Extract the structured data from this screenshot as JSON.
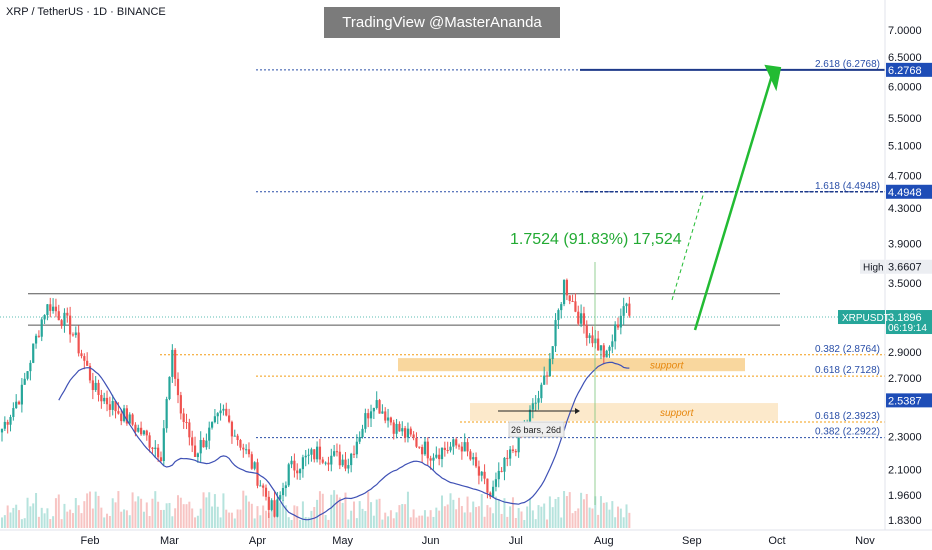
{
  "header": {
    "title": "XRP / TetherUS · 1D · BINANCE",
    "watermark": "TradingView @MasterAnanda"
  },
  "colors": {
    "up": "#26a69a",
    "down": "#ef5350",
    "ma": "#3f51b5",
    "target_arrow": "#22bb33",
    "fib": "#2a4fa8",
    "support": "#f7c97e",
    "current_price_bg": "#26a69a"
  },
  "chart_data": {
    "type": "candlestick",
    "symbol": "XRPUSDT",
    "x_labels": [
      "Feb",
      "Mar",
      "Apr",
      "May",
      "Jun",
      "Jul",
      "Aug",
      "Sep",
      "Oct",
      "Nov"
    ],
    "y_ticks": [
      "7.0000",
      "6.5000",
      "6.0000",
      "5.5000",
      "5.1000",
      "4.7000",
      "4.3000",
      "3.9000",
      "3.5000",
      "2.9000",
      "2.7000",
      "2.3000",
      "2.1000",
      "1.9600",
      "1.8300"
    ],
    "y_scale": "log",
    "y_range": [
      1.78,
      7.6
    ],
    "price_labels": {
      "high_label": "High",
      "high_value": "3.6607",
      "symbol_label": "XRPUSDT",
      "last_price": "3.1896",
      "countdown": "06:19:14",
      "ma_value": "2.5387",
      "target1": "6.2768",
      "target2": "4.4948"
    },
    "fib_levels": [
      {
        "label": "2.618 (6.2768)",
        "value": 6.2768
      },
      {
        "label": "1.618 (4.4948)",
        "value": 4.4948
      },
      {
        "label": "0.382 (2.8764)",
        "value": 2.8764
      },
      {
        "label": "0.618 (2.7128)",
        "value": 2.7128
      },
      {
        "label": "0.618 (2.3923)",
        "value": 2.3923
      },
      {
        "label": "0.382 (2.2922)",
        "value": 2.2922
      }
    ],
    "horizontal_lines": [
      3.4,
      3.12
    ],
    "support_zones": [
      {
        "label": "support",
        "from": 2.75,
        "to": 2.85
      },
      {
        "label": "support",
        "from": 2.4,
        "to": 2.52
      }
    ],
    "measure_label": "1.7524 (91.83%) 17,524",
    "bars_label": "26 bars, 26d",
    "anchor_points": [
      {
        "date": "2025-01-01",
        "close": 2.35
      },
      {
        "date": "2025-01-08",
        "close": 2.6
      },
      {
        "date": "2025-01-16",
        "close": 3.25
      },
      {
        "date": "2025-01-18",
        "close": 3.3
      },
      {
        "date": "2025-01-25",
        "close": 3.1
      },
      {
        "date": "2025-02-03",
        "close": 2.6
      },
      {
        "date": "2025-02-12",
        "close": 2.45
      },
      {
        "date": "2025-02-26",
        "close": 2.2
      },
      {
        "date": "2025-03-02",
        "close": 2.85
      },
      {
        "date": "2025-03-05",
        "close": 2.45
      },
      {
        "date": "2025-03-10",
        "close": 2.2
      },
      {
        "date": "2025-03-20",
        "close": 2.45
      },
      {
        "date": "2025-03-28",
        "close": 2.2
      },
      {
        "date": "2025-04-07",
        "close": 1.85
      },
      {
        "date": "2025-04-12",
        "close": 2.1
      },
      {
        "date": "2025-04-22",
        "close": 2.2
      },
      {
        "date": "2025-05-03",
        "close": 2.15
      },
      {
        "date": "2025-05-12",
        "close": 2.55
      },
      {
        "date": "2025-05-20",
        "close": 2.35
      },
      {
        "date": "2025-06-01",
        "close": 2.2
      },
      {
        "date": "2025-06-12",
        "close": 2.25
      },
      {
        "date": "2025-06-22",
        "close": 1.95
      },
      {
        "date": "2025-07-01",
        "close": 2.25
      },
      {
        "date": "2025-07-10",
        "close": 2.6
      },
      {
        "date": "2025-07-14",
        "close": 2.95
      },
      {
        "date": "2025-07-18",
        "close": 3.5
      },
      {
        "date": "2025-07-24",
        "close": 3.15
      },
      {
        "date": "2025-08-02",
        "close": 2.85
      },
      {
        "date": "2025-08-08",
        "close": 3.3
      },
      {
        "date": "2025-08-10",
        "close": 3.19
      }
    ]
  }
}
